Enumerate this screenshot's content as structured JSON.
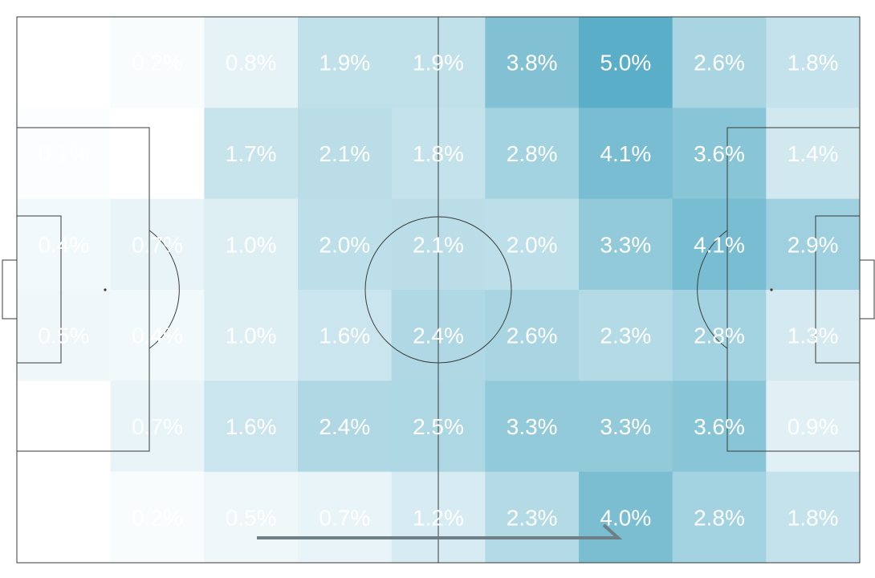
{
  "chart_data": {
    "type": "heatmap",
    "title": "",
    "xlabel": "",
    "ylabel": "",
    "legend": "none",
    "grid": false,
    "n_cols": 9,
    "n_rows": 6,
    "color_low": "#ffffff",
    "color_high": "#5aaec7",
    "value_max": 5.0,
    "values": [
      [
        0.0,
        0.2,
        0.8,
        1.9,
        1.9,
        3.8,
        5.0,
        2.6,
        1.8
      ],
      [
        0.1,
        0.0,
        1.7,
        2.1,
        1.8,
        2.8,
        4.1,
        3.6,
        1.4
      ],
      [
        0.4,
        0.7,
        1.0,
        2.0,
        2.1,
        2.0,
        3.3,
        4.1,
        2.9
      ],
      [
        0.5,
        0.4,
        1.0,
        1.6,
        2.4,
        2.6,
        2.3,
        2.8,
        1.3
      ],
      [
        0.0,
        0.7,
        1.6,
        2.4,
        2.5,
        3.3,
        3.3,
        3.6,
        0.9
      ],
      [
        0.0,
        0.2,
        0.5,
        0.7,
        1.2,
        2.3,
        4.0,
        2.8,
        1.8
      ]
    ],
    "labels": [
      [
        "",
        "0.2%",
        "0.8%",
        "1.9%",
        "1.9%",
        "3.8%",
        "5.0%",
        "2.6%",
        "1.8%"
      ],
      [
        "0.1%",
        "",
        "1.7%",
        "2.1%",
        "1.8%",
        "2.8%",
        "4.1%",
        "3.6%",
        "1.4%"
      ],
      [
        "0.4%",
        "0.7%",
        "1.0%",
        "2.0%",
        "2.1%",
        "2.0%",
        "3.3%",
        "4.1%",
        "2.9%"
      ],
      [
        "0.5%",
        "0.4%",
        "1.0%",
        "1.6%",
        "2.4%",
        "2.6%",
        "2.3%",
        "2.8%",
        "1.3%"
      ],
      [
        "",
        "0.7%",
        "1.6%",
        "2.4%",
        "2.5%",
        "3.3%",
        "3.3%",
        "3.6%",
        "0.9%"
      ],
      [
        "",
        "0.2%",
        "0.5%",
        "0.7%",
        "1.2%",
        "2.3%",
        "4.0%",
        "2.8%",
        "1.8%"
      ]
    ]
  }
}
